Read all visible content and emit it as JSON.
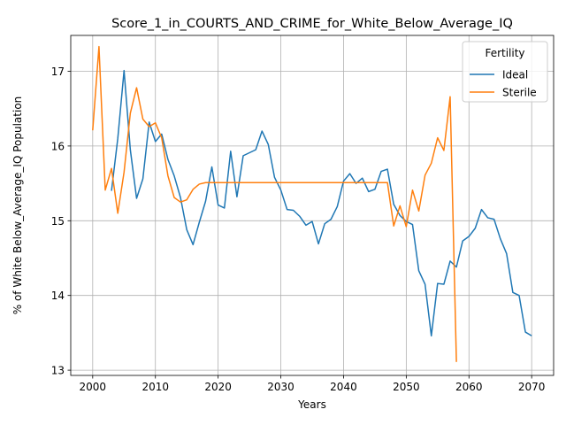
{
  "chart_data": {
    "type": "line",
    "title": "Score_1_in_COURTS_AND_CRIME_for_White_Below_Average_IQ",
    "xlabel": "Years",
    "ylabel": "% of White Below_Average_IQ Population",
    "xlim": [
      1996.5,
      2073.5
    ],
    "ylim": [
      12.93,
      17.48
    ],
    "xticks": [
      2000,
      2010,
      2020,
      2030,
      2040,
      2050,
      2060,
      2070
    ],
    "yticks": [
      13,
      14,
      15,
      16,
      17
    ],
    "grid": true,
    "legend": {
      "title": "Fertility",
      "placement": "top-right"
    },
    "series": [
      {
        "name": "Ideal",
        "color": "#1f77b4",
        "x": [
          2003,
          2004,
          2005,
          2006,
          2007,
          2008,
          2009,
          2010,
          2011,
          2012,
          2013,
          2014,
          2015,
          2016,
          2017,
          2018,
          2019,
          2020,
          2021,
          2022,
          2023,
          2024,
          2025,
          2026,
          2027,
          2028,
          2029,
          2030,
          2031,
          2032,
          2033,
          2034,
          2035,
          2036,
          2037,
          2038,
          2039,
          2040,
          2041,
          2042,
          2043,
          2044,
          2045,
          2046,
          2047,
          2048,
          2049,
          2050,
          2051,
          2052,
          2053,
          2054,
          2055,
          2056,
          2057,
          2058,
          2059,
          2060,
          2061,
          2062,
          2063,
          2064,
          2065,
          2066,
          2067,
          2068,
          2069,
          2070
        ],
        "values": [
          15.4,
          16.1,
          17.01,
          15.95,
          15.3,
          15.56,
          16.32,
          16.06,
          16.16,
          15.82,
          15.6,
          15.31,
          14.88,
          14.68,
          14.98,
          15.26,
          15.72,
          15.21,
          15.17,
          15.93,
          15.32,
          15.87,
          15.91,
          15.95,
          16.2,
          16.02,
          15.58,
          15.41,
          15.15,
          15.14,
          15.06,
          14.94,
          14.99,
          14.69,
          14.96,
          15.02,
          15.19,
          15.53,
          15.63,
          15.5,
          15.57,
          15.39,
          15.42,
          15.66,
          15.69,
          15.22,
          15.07,
          14.99,
          14.95,
          14.33,
          14.15,
          13.46,
          14.16,
          14.15,
          14.46,
          14.38,
          14.73,
          14.79,
          14.9,
          15.15,
          15.04,
          15.02,
          14.76,
          14.56,
          14.04,
          14.0,
          13.51,
          13.46
        ]
      },
      {
        "name": "Sterile",
        "color": "#ff7f0e",
        "x": [
          2000,
          2001,
          2002,
          2003,
          2004,
          2005,
          2006,
          2007,
          2008,
          2009,
          2010,
          2011,
          2012,
          2013,
          2014,
          2015,
          2016,
          2017,
          2018,
          2019,
          2020,
          2021,
          2022,
          2023,
          2024,
          2025,
          2026,
          2027,
          2028,
          2029,
          2030,
          2031,
          2032,
          2033,
          2034,
          2035,
          2036,
          2037,
          2038,
          2039,
          2040,
          2041,
          2042,
          2043,
          2044,
          2045,
          2046,
          2047,
          2048,
          2049,
          2050,
          2051,
          2052,
          2053,
          2054,
          2055,
          2056,
          2057,
          2058
        ],
        "values": [
          16.21,
          17.33,
          15.41,
          15.7,
          15.1,
          15.65,
          16.44,
          16.78,
          16.36,
          16.26,
          16.31,
          16.11,
          15.6,
          15.31,
          15.25,
          15.28,
          15.42,
          15.49,
          15.51,
          15.51,
          15.51,
          15.51,
          15.51,
          15.51,
          15.51,
          15.51,
          15.51,
          15.51,
          15.51,
          15.51,
          15.51,
          15.51,
          15.51,
          15.51,
          15.51,
          15.51,
          15.51,
          15.51,
          15.51,
          15.51,
          15.51,
          15.51,
          15.51,
          15.51,
          15.51,
          15.51,
          15.51,
          15.51,
          14.93,
          15.2,
          14.92,
          15.41,
          15.13,
          15.61,
          15.77,
          16.11,
          15.94,
          16.66,
          13.11
        ]
      }
    ]
  }
}
